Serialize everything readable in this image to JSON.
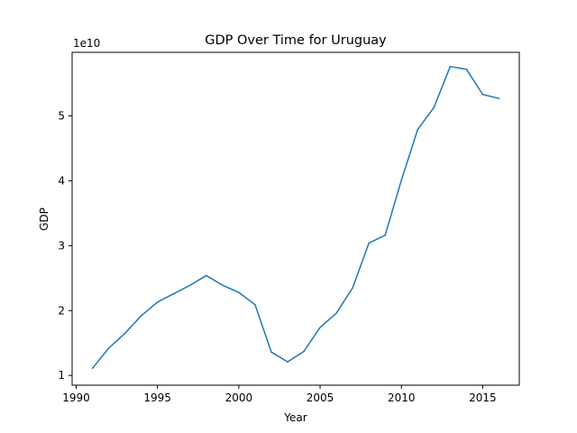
{
  "chart_data": {
    "type": "line",
    "title": "GDP Over Time for Uruguay",
    "xlabel": "Year",
    "ylabel": "GDP",
    "y_offset_label": "1e10",
    "x_ticks": [
      1990,
      1995,
      2000,
      2005,
      2010,
      2015
    ],
    "y_ticks": [
      1,
      2,
      3,
      4,
      5
    ],
    "y_ticks_unit": 10000000000.0,
    "xlim": [
      1989.75,
      2017.25
    ],
    "ylim": [
      8500000000.0,
      59800000000.0
    ],
    "grid": false,
    "series": [
      {
        "color": "#1f77b4",
        "x": [
          1991,
          1992,
          1993,
          1994,
          1995,
          1996,
          1997,
          1998,
          1999,
          2000,
          2001,
          2002,
          2003,
          2004,
          2005,
          2006,
          2007,
          2008,
          2009,
          2010,
          2011,
          2012,
          2013,
          2014,
          2015,
          2016
        ],
        "y": [
          11100000000.0,
          14200000000.0,
          16500000000.0,
          19200000000.0,
          21300000000.0,
          22600000000.0,
          23900000000.0,
          25400000000.0,
          23900000000.0,
          22800000000.0,
          20900000000.0,
          13600000000.0,
          12100000000.0,
          13700000000.0,
          17400000000.0,
          19600000000.0,
          23500000000.0,
          30400000000.0,
          31600000000.0,
          40100000000.0,
          47900000000.0,
          51300000000.0,
          57600000000.0,
          57200000000.0,
          53300000000.0,
          52700000000.0
        ]
      }
    ]
  }
}
